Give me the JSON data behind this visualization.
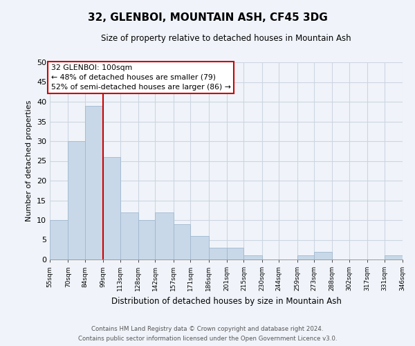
{
  "title": "32, GLENBOI, MOUNTAIN ASH, CF45 3DG",
  "subtitle": "Size of property relative to detached houses in Mountain Ash",
  "xlabel": "Distribution of detached houses by size in Mountain Ash",
  "ylabel": "Number of detached properties",
  "bar_color": "#c8d8e8",
  "bar_edge_color": "#a0b8d0",
  "grid_color": "#ccd5e0",
  "vline_color": "#cc0000",
  "vline_x": 99,
  "annotation_line1": "32 GLENBOI: 100sqm",
  "annotation_line2": "← 48% of detached houses are smaller (79)",
  "annotation_line3": "52% of semi-detached houses are larger (86) →",
  "annotation_box_color": "#ffffff",
  "annotation_box_edge": "#cc0000",
  "bins": [
    55,
    70,
    84,
    99,
    113,
    128,
    142,
    157,
    171,
    186,
    201,
    215,
    230,
    244,
    259,
    273,
    288,
    302,
    317,
    331,
    346
  ],
  "counts": [
    10,
    30,
    39,
    26,
    12,
    10,
    12,
    9,
    6,
    3,
    3,
    1,
    0,
    0,
    1,
    2,
    0,
    0,
    0,
    1
  ],
  "ylim": [
    0,
    50
  ],
  "yticks": [
    0,
    5,
    10,
    15,
    20,
    25,
    30,
    35,
    40,
    45,
    50
  ],
  "tick_labels": [
    "55sqm",
    "70sqm",
    "84sqm",
    "99sqm",
    "113sqm",
    "128sqm",
    "142sqm",
    "157sqm",
    "171sqm",
    "186sqm",
    "201sqm",
    "215sqm",
    "230sqm",
    "244sqm",
    "259sqm",
    "273sqm",
    "288sqm",
    "302sqm",
    "317sqm",
    "331sqm",
    "346sqm"
  ],
  "footer_line1": "Contains HM Land Registry data © Crown copyright and database right 2024.",
  "footer_line2": "Contains public sector information licensed under the Open Government Licence v3.0.",
  "background_color": "#f0f4fa"
}
